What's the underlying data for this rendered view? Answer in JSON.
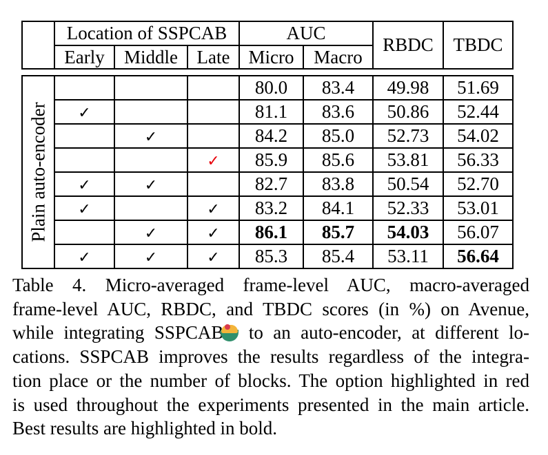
{
  "table": {
    "header": {
      "location_group": "Location of SSPCAB",
      "auc_group": "AUC",
      "early": "Early",
      "middle": "Middle",
      "late": "Late",
      "micro": "Micro",
      "macro": "Macro",
      "rbdc": "RBDC",
      "tbdc": "TBDC"
    },
    "side_label": "Plain auto-encoder",
    "check_symbol": "✓",
    "highlight_color": "#e8000b",
    "rows": [
      {
        "early": "",
        "middle": "",
        "late": "",
        "micro": "80.0",
        "macro": "83.4",
        "rbdc": "49.98",
        "tbdc": "51.69"
      },
      {
        "early": "✓",
        "middle": "",
        "late": "",
        "micro": "81.1",
        "macro": "83.6",
        "rbdc": "50.86",
        "tbdc": "52.44"
      },
      {
        "early": "",
        "middle": "✓",
        "late": "",
        "micro": "84.2",
        "macro": "85.0",
        "rbdc": "52.73",
        "tbdc": "54.02"
      },
      {
        "early": "",
        "middle": "",
        "late": "✓",
        "micro": "85.9",
        "macro": "85.6",
        "rbdc": "53.81",
        "tbdc": "56.33"
      },
      {
        "early": "✓",
        "middle": "✓",
        "late": "",
        "micro": "82.7",
        "macro": "83.8",
        "rbdc": "50.54",
        "tbdc": "52.70"
      },
      {
        "early": "✓",
        "middle": "",
        "late": "✓",
        "micro": "83.2",
        "macro": "84.1",
        "rbdc": "52.33",
        "tbdc": "53.01"
      },
      {
        "early": "",
        "middle": "✓",
        "late": "✓",
        "micro": "86.1",
        "macro": "85.7",
        "rbdc": "54.03",
        "tbdc": "56.07"
      },
      {
        "early": "✓",
        "middle": "✓",
        "late": "✓",
        "micro": "85.3",
        "macro": "85.4",
        "rbdc": "53.11",
        "tbdc": "56.64"
      }
    ]
  },
  "caption": {
    "line1": "Table 4.   Micro-averaged frame-level AUC, macro-averaged",
    "line2": "frame-level AUC, RBDC, and TBDC scores (in %) on Avenue,",
    "line3a": "while integrating SSPCAB",
    "line3b": "to an auto-encoder, at different lo-",
    "line4": "cations. SSPCAB improves the results regardless of the integra-",
    "line5": "tion place or the number of blocks. The option highlighted in red",
    "line6": "is used throughout the experiments presented in the main article.",
    "line7": "Best results are highlighted in bold.",
    "emoji_icon": "bowl-emoji-icon"
  }
}
